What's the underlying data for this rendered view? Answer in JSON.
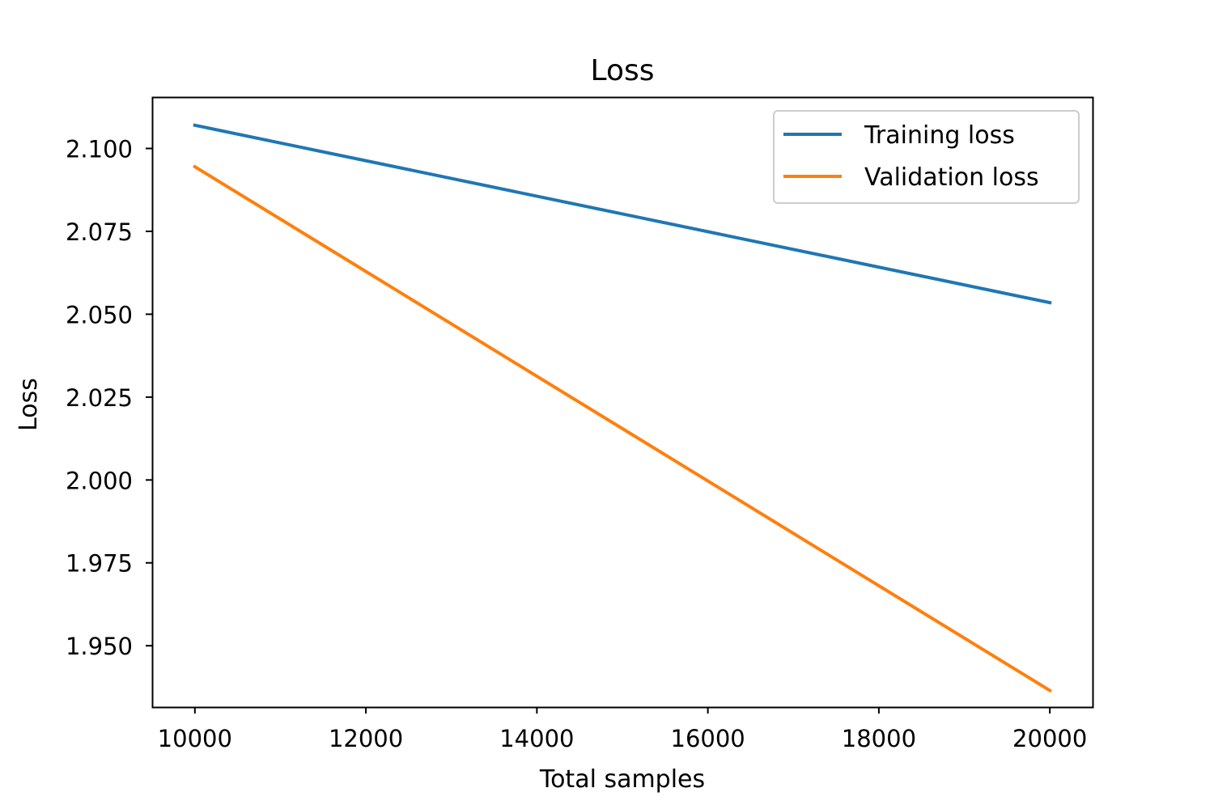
{
  "chart_data": {
    "type": "line",
    "title": "Loss",
    "xlabel": "Total samples",
    "ylabel": "Loss",
    "x": [
      10000,
      20000
    ],
    "xlim": [
      9500,
      20500
    ],
    "ylim": [
      1.9315,
      2.1155
    ],
    "xticks": [
      10000,
      12000,
      14000,
      16000,
      18000,
      20000
    ],
    "xtick_labels": [
      "10000",
      "12000",
      "14000",
      "16000",
      "18000",
      "20000"
    ],
    "yticks": [
      1.95,
      1.975,
      2.0,
      2.025,
      2.05,
      2.075,
      2.1
    ],
    "ytick_labels": [
      "1.950",
      "1.975",
      "2.000",
      "2.025",
      "2.050",
      "2.075",
      "2.100"
    ],
    "grid": false,
    "legend_position": "top-right",
    "series": [
      {
        "name": "Training loss",
        "color": "#1f77b4",
        "values": [
          2.107,
          2.0535
        ]
      },
      {
        "name": "Validation loss",
        "color": "#ff7f0e",
        "values": [
          2.0945,
          1.9365
        ]
      }
    ]
  }
}
